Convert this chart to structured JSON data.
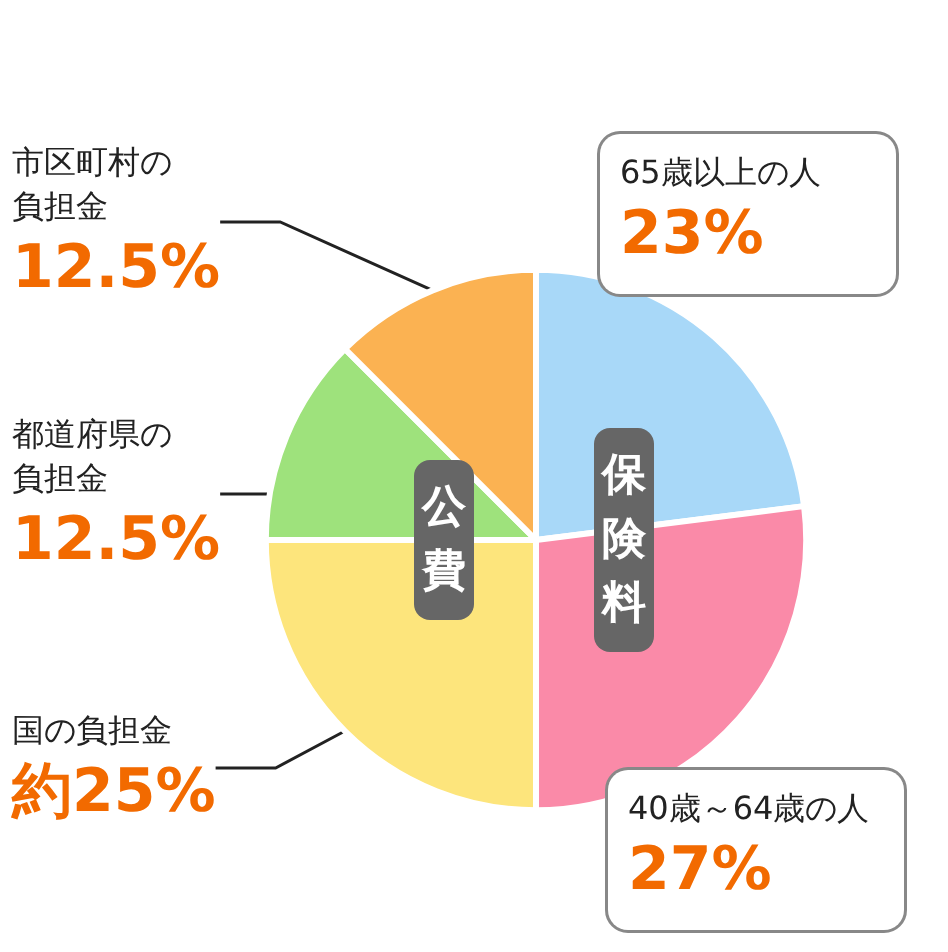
{
  "chart_data": {
    "type": "pie",
    "categories": [
      "65歳以上の人",
      "40歳～64歳の人",
      "国の負担金",
      "都道府県の負担金",
      "市区町村の負担金"
    ],
    "values": [
      23,
      27,
      25,
      12.5,
      12.5
    ],
    "colors": [
      "#a8d8f8",
      "#fa8aa8",
      "#fde57c",
      "#9ee27c",
      "#fbb252"
    ],
    "value_labels": [
      "23%",
      "27%",
      "約25%",
      "12.5%",
      "12.5%"
    ],
    "legend": false,
    "annotations": [
      "公費",
      "保険料"
    ]
  }
}
